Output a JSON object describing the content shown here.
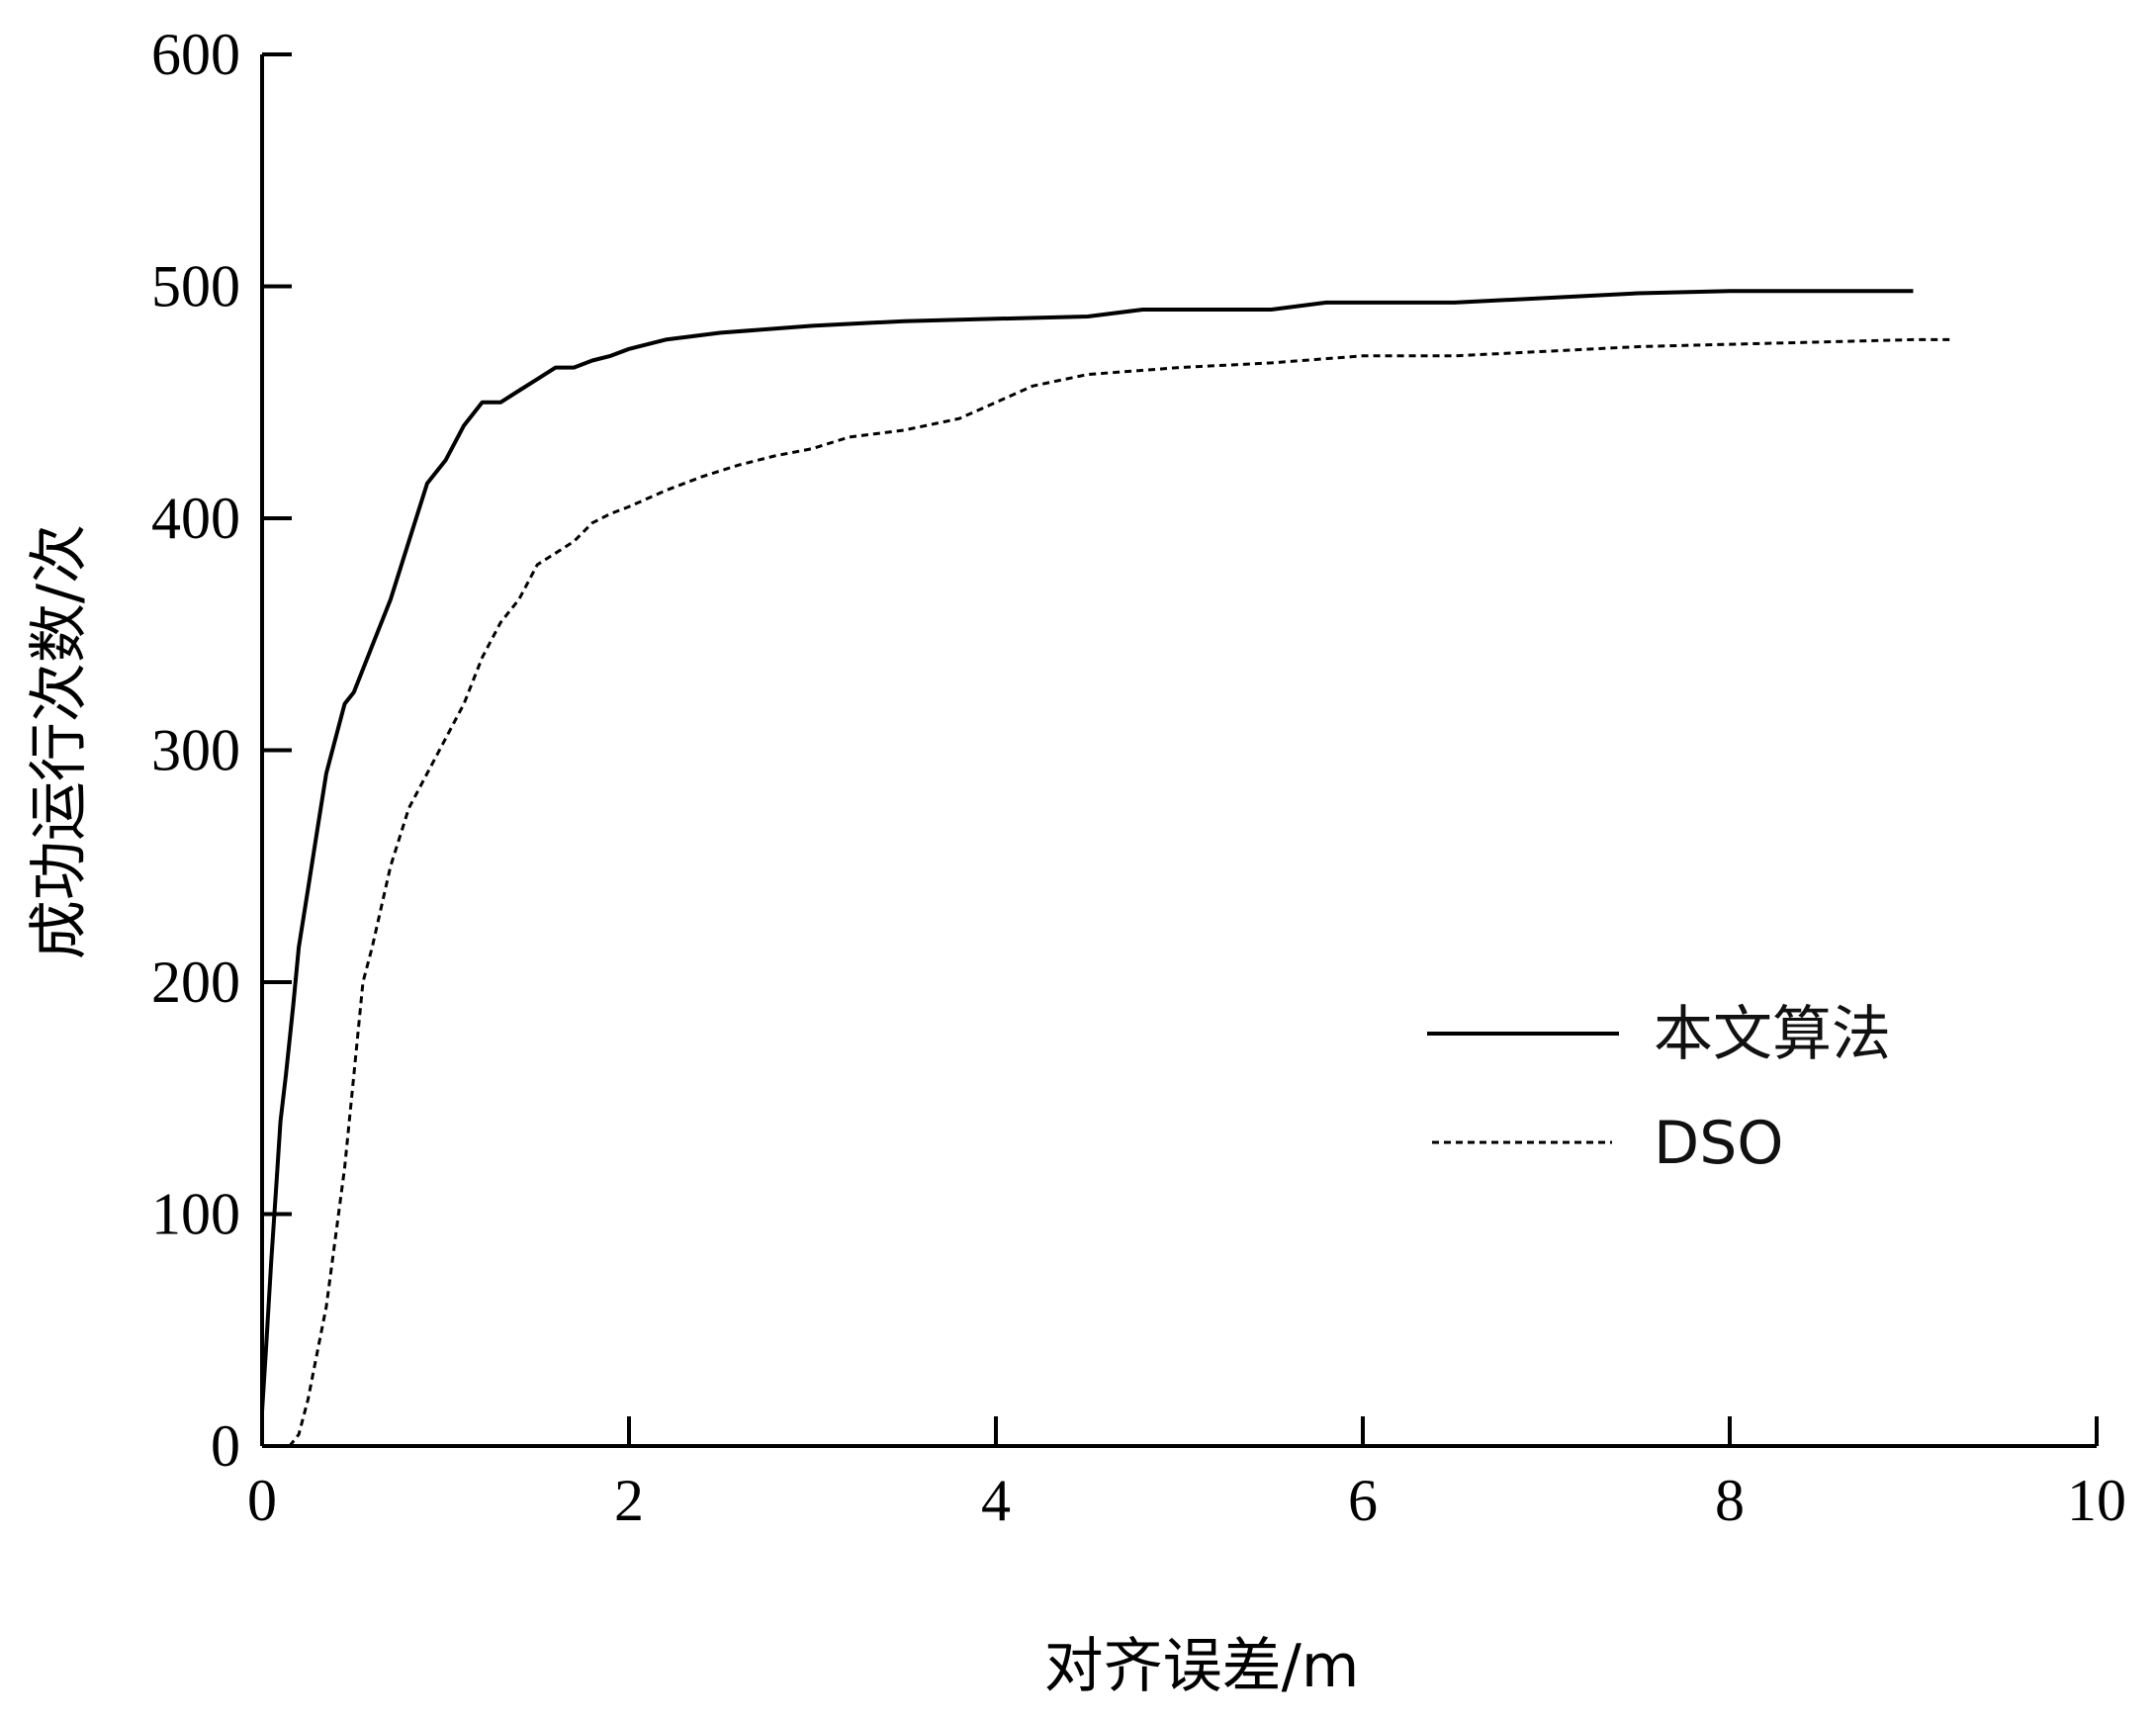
{
  "chart_data": {
    "type": "line",
    "title": "",
    "xlabel": "对齐误差/m",
    "ylabel": "成功运行次数/次",
    "xlim": [
      0,
      10
    ],
    "ylim": [
      0,
      600
    ],
    "xticks": [
      0,
      2,
      4,
      6,
      8,
      10
    ],
    "yticks": [
      0,
      100,
      200,
      300,
      400,
      500,
      600
    ],
    "grid": false,
    "legend_position": "center-right",
    "series": [
      {
        "name": "本文算法",
        "style": "solid",
        "color": "#000000",
        "x": [
          0.0,
          0.02,
          0.05,
          0.08,
          0.1,
          0.13,
          0.17,
          0.2,
          0.25,
          0.3,
          0.35,
          0.4,
          0.45,
          0.5,
          0.6,
          0.7,
          0.8,
          0.9,
          1.0,
          1.1,
          1.2,
          1.3,
          1.4,
          1.5,
          1.6,
          1.7,
          1.8,
          1.9,
          2.0,
          2.2,
          2.5,
          3.0,
          3.5,
          4.0,
          4.5,
          4.8,
          5.5,
          5.8,
          6.5,
          7.0,
          7.5,
          8.0,
          9.0
        ],
        "y": [
          15,
          40,
          80,
          115,
          140,
          160,
          190,
          215,
          240,
          265,
          290,
          305,
          320,
          325,
          345,
          365,
          390,
          415,
          425,
          440,
          450,
          450,
          455,
          460,
          465,
          465,
          468,
          470,
          473,
          477,
          480,
          483,
          485,
          486,
          487,
          490,
          490,
          493,
          493,
          495,
          497,
          498,
          498
        ]
      },
      {
        "name": "DSO",
        "style": "dotted",
        "color": "#000000",
        "x": [
          0.15,
          0.2,
          0.25,
          0.3,
          0.35,
          0.4,
          0.45,
          0.5,
          0.55,
          0.6,
          0.7,
          0.8,
          0.9,
          1.0,
          1.1,
          1.2,
          1.3,
          1.4,
          1.5,
          1.6,
          1.7,
          1.8,
          1.9,
          2.0,
          2.2,
          2.4,
          2.6,
          2.8,
          3.0,
          3.2,
          3.5,
          3.8,
          4.0,
          4.2,
          4.5,
          5.0,
          5.5,
          6.0,
          6.5,
          7.0,
          7.5,
          8.0,
          8.5,
          9.0,
          9.2
        ],
        "y": [
          0,
          5,
          20,
          40,
          60,
          90,
          120,
          160,
          200,
          215,
          250,
          275,
          290,
          305,
          320,
          340,
          355,
          365,
          380,
          385,
          390,
          398,
          402,
          405,
          412,
          418,
          423,
          427,
          430,
          435,
          438,
          443,
          450,
          457,
          462,
          465,
          467,
          470,
          470,
          472,
          474,
          475,
          476,
          477,
          477
        ]
      }
    ]
  }
}
